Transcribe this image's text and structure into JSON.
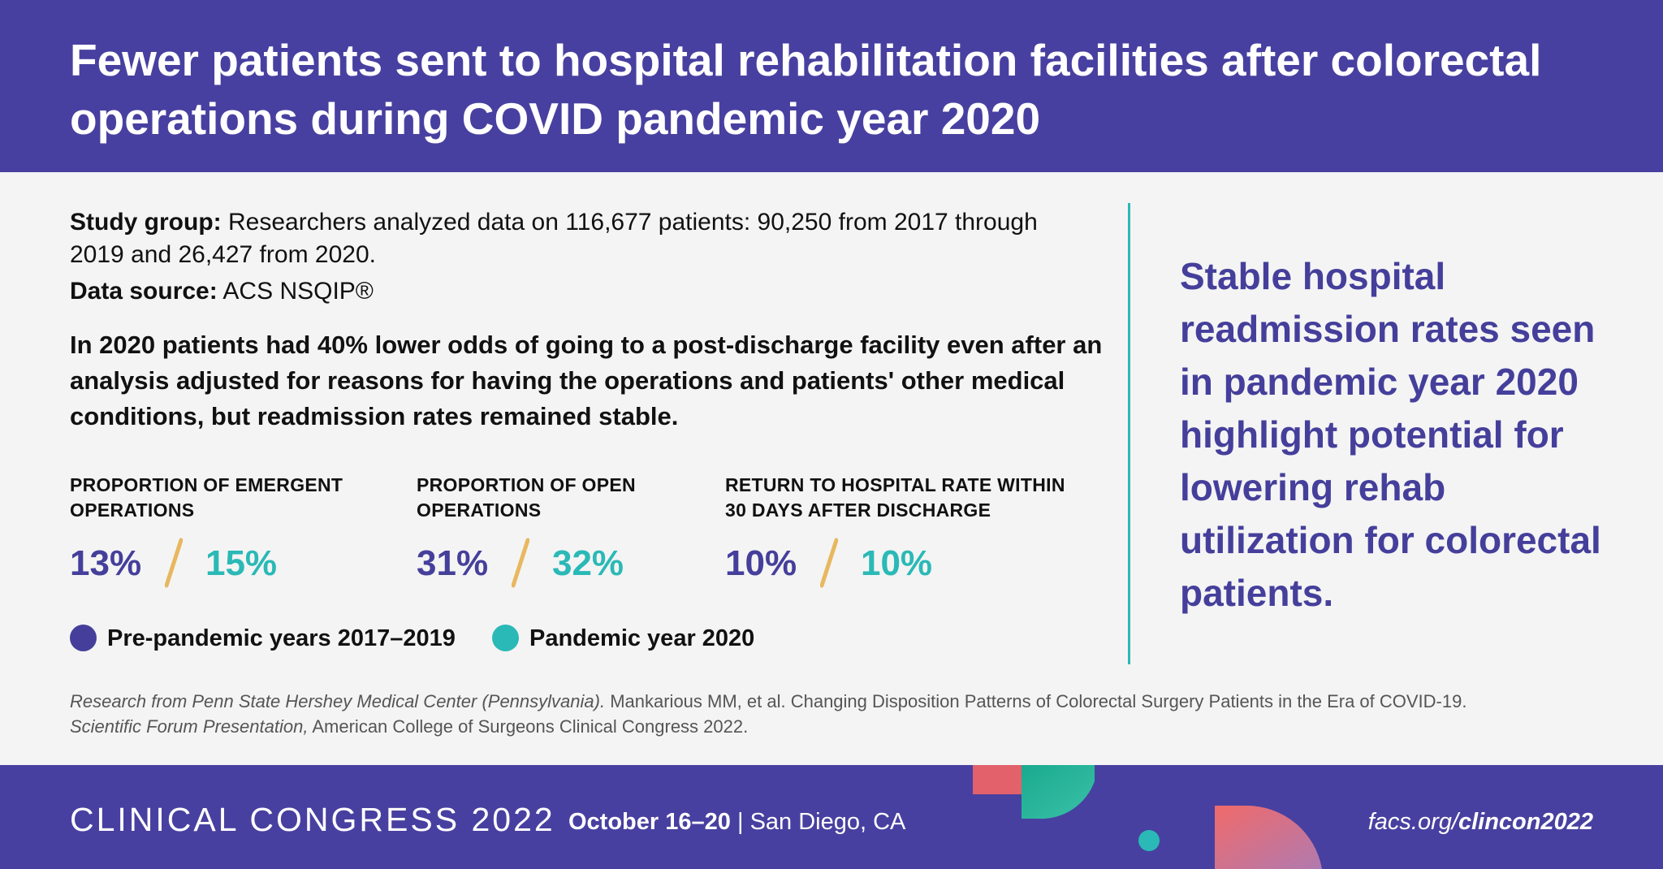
{
  "header": {
    "title": "Fewer patients sent to hospital rehabilitation facilities after colorectal operations during COVID pandemic year 2020"
  },
  "study": {
    "group_label": "Study group:",
    "group_text": "Researchers analyzed data on 116,677 patients: 90,250 from 2017 through 2019 and 26,427 from 2020.",
    "source_label": "Data source:",
    "source_text": "ACS NSQIP®"
  },
  "finding": "In 2020 patients had 40% lower odds of going to a post-discharge facility even after an analysis adjusted for reasons for having the operations and patients' other medical conditions, but readmission rates remained stable.",
  "stats": [
    {
      "title_line1": "PROPORTION OF EMERGENT",
      "title_line2": "OPERATIONS",
      "pre": "13%",
      "pandemic": "15%"
    },
    {
      "title_line1": "PROPORTION OF OPEN",
      "title_line2": "OPERATIONS",
      "pre": "31%",
      "pandemic": "32%"
    },
    {
      "title_line1": "RETURN TO HOSPITAL RATE WITHIN",
      "title_line2": "30 DAYS AFTER DISCHARGE",
      "pre": "10%",
      "pandemic": "10%"
    }
  ],
  "legend": {
    "pre": "Pre-pandemic years 2017–2019",
    "pandemic": "Pandemic year 2020"
  },
  "highlight": "Stable hospital readmission rates seen in pandemic year 2020 highlight potential for lowering rehab utilization for colorectal patients.",
  "citation": {
    "research_italic": "Research from Penn State Hershey Medical Center (Pennsylvania).",
    "authors": "Mankarious MM, et al. Changing Disposition Patterns of Colorectal Surgery Patients in the Era of COVID-19.",
    "forum_italic": "Scientific Forum Presentation,",
    "venue": "American College of Surgeons Clinical Congress 2022."
  },
  "footer": {
    "congress": "CLINICAL CONGRESS 2022",
    "dates": "October 16–20",
    "separator": "|",
    "location": "San Diego, CA",
    "url_prefix": "facs.org/",
    "url_bold": "clincon2022"
  },
  "colors": {
    "brand_purple": "#4840a0",
    "pre_pandemic": "#453f9b",
    "pandemic": "#2ab9b6",
    "slash": "#e8b75f"
  }
}
